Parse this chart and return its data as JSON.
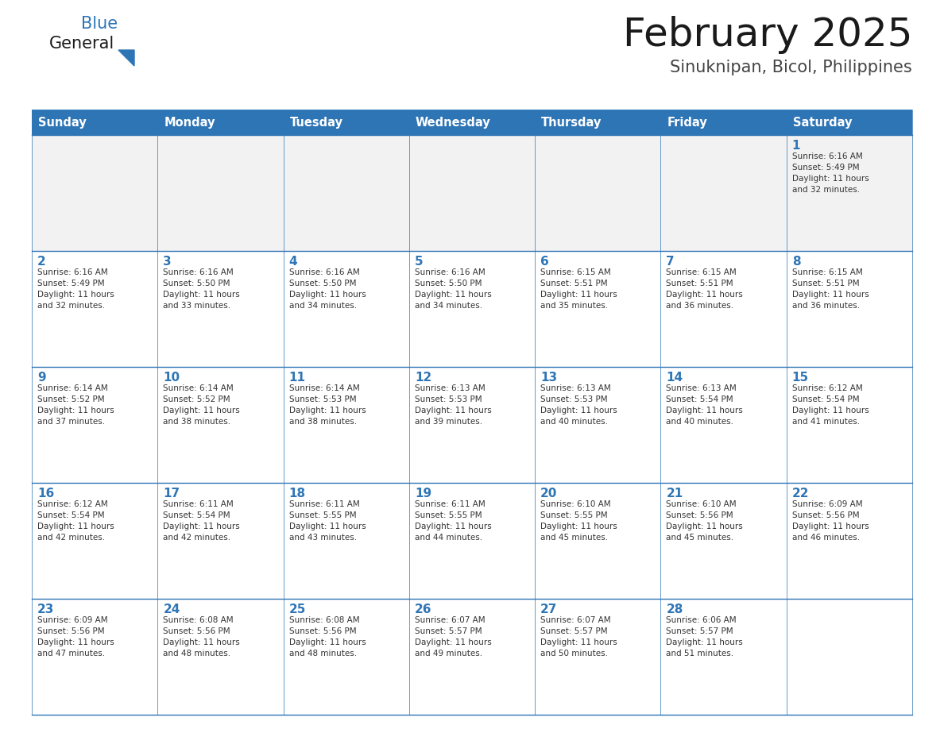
{
  "title": "February 2025",
  "subtitle": "Sinuknipan, Bicol, Philippines",
  "header_bg_color": "#2E75B6",
  "header_text_color": "#FFFFFF",
  "cell_bg_white": "#FFFFFF",
  "cell_bg_gray": "#F2F2F2",
  "cell_text_color": "#333333",
  "day_number_color": "#2E75B6",
  "border_color": "#2E75B6",
  "days_of_week": [
    "Sunday",
    "Monday",
    "Tuesday",
    "Wednesday",
    "Thursday",
    "Friday",
    "Saturday"
  ],
  "weeks": [
    [
      {
        "day": null,
        "info": null
      },
      {
        "day": null,
        "info": null
      },
      {
        "day": null,
        "info": null
      },
      {
        "day": null,
        "info": null
      },
      {
        "day": null,
        "info": null
      },
      {
        "day": null,
        "info": null
      },
      {
        "day": 1,
        "info": "Sunrise: 6:16 AM\nSunset: 5:49 PM\nDaylight: 11 hours\nand 32 minutes."
      }
    ],
    [
      {
        "day": 2,
        "info": "Sunrise: 6:16 AM\nSunset: 5:49 PM\nDaylight: 11 hours\nand 32 minutes."
      },
      {
        "day": 3,
        "info": "Sunrise: 6:16 AM\nSunset: 5:50 PM\nDaylight: 11 hours\nand 33 minutes."
      },
      {
        "day": 4,
        "info": "Sunrise: 6:16 AM\nSunset: 5:50 PM\nDaylight: 11 hours\nand 34 minutes."
      },
      {
        "day": 5,
        "info": "Sunrise: 6:16 AM\nSunset: 5:50 PM\nDaylight: 11 hours\nand 34 minutes."
      },
      {
        "day": 6,
        "info": "Sunrise: 6:15 AM\nSunset: 5:51 PM\nDaylight: 11 hours\nand 35 minutes."
      },
      {
        "day": 7,
        "info": "Sunrise: 6:15 AM\nSunset: 5:51 PM\nDaylight: 11 hours\nand 36 minutes."
      },
      {
        "day": 8,
        "info": "Sunrise: 6:15 AM\nSunset: 5:51 PM\nDaylight: 11 hours\nand 36 minutes."
      }
    ],
    [
      {
        "day": 9,
        "info": "Sunrise: 6:14 AM\nSunset: 5:52 PM\nDaylight: 11 hours\nand 37 minutes."
      },
      {
        "day": 10,
        "info": "Sunrise: 6:14 AM\nSunset: 5:52 PM\nDaylight: 11 hours\nand 38 minutes."
      },
      {
        "day": 11,
        "info": "Sunrise: 6:14 AM\nSunset: 5:53 PM\nDaylight: 11 hours\nand 38 minutes."
      },
      {
        "day": 12,
        "info": "Sunrise: 6:13 AM\nSunset: 5:53 PM\nDaylight: 11 hours\nand 39 minutes."
      },
      {
        "day": 13,
        "info": "Sunrise: 6:13 AM\nSunset: 5:53 PM\nDaylight: 11 hours\nand 40 minutes."
      },
      {
        "day": 14,
        "info": "Sunrise: 6:13 AM\nSunset: 5:54 PM\nDaylight: 11 hours\nand 40 minutes."
      },
      {
        "day": 15,
        "info": "Sunrise: 6:12 AM\nSunset: 5:54 PM\nDaylight: 11 hours\nand 41 minutes."
      }
    ],
    [
      {
        "day": 16,
        "info": "Sunrise: 6:12 AM\nSunset: 5:54 PM\nDaylight: 11 hours\nand 42 minutes."
      },
      {
        "day": 17,
        "info": "Sunrise: 6:11 AM\nSunset: 5:54 PM\nDaylight: 11 hours\nand 42 minutes."
      },
      {
        "day": 18,
        "info": "Sunrise: 6:11 AM\nSunset: 5:55 PM\nDaylight: 11 hours\nand 43 minutes."
      },
      {
        "day": 19,
        "info": "Sunrise: 6:11 AM\nSunset: 5:55 PM\nDaylight: 11 hours\nand 44 minutes."
      },
      {
        "day": 20,
        "info": "Sunrise: 6:10 AM\nSunset: 5:55 PM\nDaylight: 11 hours\nand 45 minutes."
      },
      {
        "day": 21,
        "info": "Sunrise: 6:10 AM\nSunset: 5:56 PM\nDaylight: 11 hours\nand 45 minutes."
      },
      {
        "day": 22,
        "info": "Sunrise: 6:09 AM\nSunset: 5:56 PM\nDaylight: 11 hours\nand 46 minutes."
      }
    ],
    [
      {
        "day": 23,
        "info": "Sunrise: 6:09 AM\nSunset: 5:56 PM\nDaylight: 11 hours\nand 47 minutes."
      },
      {
        "day": 24,
        "info": "Sunrise: 6:08 AM\nSunset: 5:56 PM\nDaylight: 11 hours\nand 48 minutes."
      },
      {
        "day": 25,
        "info": "Sunrise: 6:08 AM\nSunset: 5:56 PM\nDaylight: 11 hours\nand 48 minutes."
      },
      {
        "day": 26,
        "info": "Sunrise: 6:07 AM\nSunset: 5:57 PM\nDaylight: 11 hours\nand 49 minutes."
      },
      {
        "day": 27,
        "info": "Sunrise: 6:07 AM\nSunset: 5:57 PM\nDaylight: 11 hours\nand 50 minutes."
      },
      {
        "day": 28,
        "info": "Sunrise: 6:06 AM\nSunset: 5:57 PM\nDaylight: 11 hours\nand 51 minutes."
      },
      {
        "day": null,
        "info": null
      }
    ]
  ],
  "logo_general_color": "#1a1a1a",
  "logo_blue_color": "#2E75B6",
  "logo_triangle_color": "#2E75B6",
  "fig_width": 11.88,
  "fig_height": 9.18,
  "dpi": 100
}
